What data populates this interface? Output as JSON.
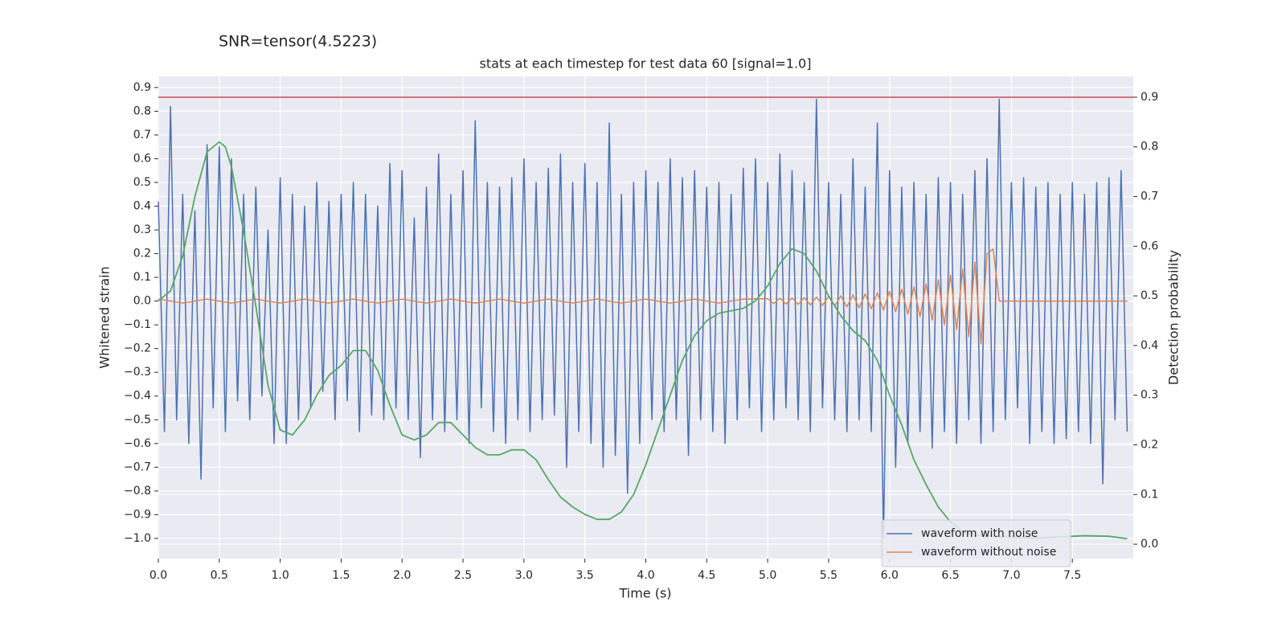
{
  "chart_data": {
    "type": "line",
    "suptitle": "SNR=tensor(4.5223)",
    "title": "stats at each timestep for test data 60 [signal=1.0]",
    "xlabel": "Time (s)",
    "ylabel": "Whitened strain",
    "y2label": "Detection probability",
    "xlim": [
      0,
      8.0
    ],
    "ylim": [
      -1.085,
      0.947
    ],
    "y2lim": [
      -0.029,
      0.942
    ],
    "xticks": [
      {
        "value": 0,
        "label": "0.0"
      },
      0.5,
      {
        "value": 1,
        "label": "1.0"
      },
      1.5,
      {
        "value": 2,
        "label": "2.0"
      },
      2.5,
      {
        "value": 3,
        "label": "3.0"
      },
      3.5,
      {
        "value": 4,
        "label": "4.0"
      },
      4.5,
      {
        "value": 5,
        "label": "5.0"
      },
      5.5,
      {
        "value": 6,
        "label": "6.0"
      },
      6.5,
      {
        "value": 7,
        "label": "7.0"
      },
      7.5
    ],
    "yticks": [
      {
        "value": -1.0,
        "label": "−1.0"
      },
      {
        "value": -0.9,
        "label": "−0.9"
      },
      {
        "value": -0.8,
        "label": "−0.8"
      },
      {
        "value": -0.7,
        "label": "−0.7"
      },
      {
        "value": -0.6,
        "label": "−0.6"
      },
      {
        "value": -0.5,
        "label": "−0.5"
      },
      {
        "value": -0.4,
        "label": "−0.4"
      },
      {
        "value": -0.3,
        "label": "−0.3"
      },
      {
        "value": -0.2,
        "label": "−0.2"
      },
      {
        "value": -0.1,
        "label": "−0.1"
      },
      {
        "value": 0,
        "label": "0.0"
      },
      0.1,
      0.2,
      0.3,
      0.4,
      0.5,
      0.6,
      0.7,
      0.8,
      0.9
    ],
    "y2ticks": [
      {
        "value": 0,
        "label": "0.0"
      },
      0.1,
      0.2,
      0.3,
      0.4,
      0.5,
      0.6,
      0.7,
      0.8,
      0.9
    ],
    "grid": true,
    "legend": "lower right",
    "hline": {
      "value": 0.9,
      "axis": "y2",
      "color": "#c44e52"
    },
    "series": [
      {
        "name": "waveform with noise",
        "color": "#4c72b0",
        "width": 1.5,
        "x": [
          0,
          0.05,
          0.1,
          0.15,
          0.2,
          0.25,
          0.3,
          0.35,
          0.4,
          0.45,
          0.5,
          0.55,
          0.6,
          0.65,
          0.7,
          0.75,
          0.8,
          0.85,
          0.9,
          0.95,
          1,
          1.05,
          1.1,
          1.15,
          1.2,
          1.25,
          1.3,
          1.35,
          1.4,
          1.45,
          1.5,
          1.55,
          1.6,
          1.65,
          1.7,
          1.75,
          1.8,
          1.85,
          1.9,
          1.95,
          2,
          2.05,
          2.1,
          2.15,
          2.2,
          2.25,
          2.3,
          2.35,
          2.4,
          2.45,
          2.5,
          2.55,
          2.6,
          2.65,
          2.7,
          2.75,
          2.8,
          2.85,
          2.9,
          2.95,
          3,
          3.05,
          3.1,
          3.15,
          3.2,
          3.25,
          3.3,
          3.35,
          3.4,
          3.45,
          3.5,
          3.55,
          3.6,
          3.65,
          3.7,
          3.75,
          3.8,
          3.85,
          3.9,
          3.95,
          4,
          4.05,
          4.1,
          4.15,
          4.2,
          4.25,
          4.3,
          4.35,
          4.4,
          4.45,
          4.5,
          4.55,
          4.6,
          4.65,
          4.7,
          4.75,
          4.8,
          4.85,
          4.9,
          4.95,
          5,
          5.05,
          5.1,
          5.15,
          5.2,
          5.25,
          5.3,
          5.35,
          5.4,
          5.45,
          5.5,
          5.55,
          5.6,
          5.65,
          5.7,
          5.75,
          5.8,
          5.85,
          5.9,
          5.95,
          6,
          6.05,
          6.1,
          6.15,
          6.2,
          6.25,
          6.3,
          6.35,
          6.4,
          6.45,
          6.5,
          6.55,
          6.6,
          6.65,
          6.7,
          6.75,
          6.8,
          6.85,
          6.9,
          6.95,
          7,
          7.05,
          7.1,
          7.15,
          7.2,
          7.25,
          7.3,
          7.35,
          7.4,
          7.45,
          7.5,
          7.55,
          7.6,
          7.65,
          7.7,
          7.75,
          7.8,
          7.85,
          7.9,
          7.95
        ],
        "values": [
          0.42,
          -0.55,
          0.82,
          -0.5,
          0.45,
          -0.6,
          0.38,
          -0.75,
          0.66,
          -0.45,
          0.65,
          -0.55,
          0.6,
          -0.42,
          0.45,
          -0.5,
          0.48,
          -0.4,
          0.3,
          -0.6,
          0.52,
          -0.6,
          0.45,
          -0.5,
          0.4,
          -0.45,
          0.5,
          -0.38,
          0.42,
          -0.5,
          0.45,
          -0.42,
          0.5,
          -0.55,
          0.45,
          -0.48,
          0.4,
          -0.5,
          0.58,
          -0.45,
          0.55,
          -0.5,
          0.35,
          -0.66,
          0.48,
          -0.5,
          0.62,
          -0.55,
          0.45,
          -0.5,
          0.55,
          -0.6,
          0.76,
          -0.45,
          0.5,
          -0.55,
          0.48,
          -0.6,
          0.52,
          -0.5,
          0.6,
          -0.55,
          0.5,
          -0.5,
          0.56,
          -0.48,
          0.62,
          -0.7,
          0.5,
          -0.55,
          0.58,
          -0.6,
          0.5,
          -0.7,
          0.75,
          -0.65,
          0.45,
          -0.81,
          0.5,
          -0.6,
          0.55,
          -0.5,
          0.5,
          -0.55,
          0.6,
          -0.5,
          0.52,
          -0.65,
          0.55,
          -0.5,
          0.48,
          -0.55,
          0.5,
          -0.6,
          0.45,
          -0.5,
          0.56,
          -0.45,
          0.6,
          -0.55,
          0.5,
          -0.5,
          0.62,
          -0.45,
          0.55,
          -0.5,
          0.5,
          -0.55,
          0.85,
          -0.45,
          0.5,
          -0.5,
          0.45,
          -0.55,
          0.6,
          -0.5,
          0.48,
          -0.55,
          0.75,
          -1.0,
          0.55,
          -0.7,
          0.48,
          -0.6,
          0.5,
          -0.55,
          0.45,
          -0.62,
          0.52,
          -0.55,
          0.5,
          -0.6,
          0.45,
          -0.5,
          0.55,
          -0.6,
          0.6,
          -0.55,
          0.85,
          -0.5,
          0.5,
          -0.45,
          0.52,
          -0.6,
          0.48,
          -0.55,
          0.5,
          -0.6,
          0.45,
          -0.58,
          0.5,
          -0.55,
          0.45,
          -0.6,
          0.5,
          -0.77,
          0.52,
          -0.5,
          0.55,
          -0.55
        ]
      },
      {
        "name": "waveform without noise",
        "color": "#dd8452",
        "width": 1.5,
        "x": [
          0,
          0.2,
          0.4,
          0.6,
          0.8,
          1,
          1.2,
          1.4,
          1.6,
          1.8,
          2,
          2.2,
          2.4,
          2.6,
          2.8,
          3,
          3.2,
          3.4,
          3.6,
          3.8,
          4,
          4.2,
          4.4,
          4.6,
          4.8,
          5,
          5.05,
          5.1,
          5.15,
          5.2,
          5.25,
          5.3,
          5.35,
          5.4,
          5.45,
          5.5,
          5.55,
          5.6,
          5.65,
          5.7,
          5.75,
          5.8,
          5.85,
          5.9,
          5.95,
          6,
          6.05,
          6.1,
          6.15,
          6.2,
          6.25,
          6.3,
          6.35,
          6.4,
          6.45,
          6.5,
          6.55,
          6.6,
          6.65,
          6.7,
          6.75,
          6.8,
          6.85,
          6.9,
          7.95
        ],
        "values": [
          0.008,
          -0.008,
          0.008,
          -0.008,
          0.008,
          -0.008,
          0.008,
          -0.008,
          0.008,
          -0.008,
          0.008,
          -0.008,
          0.008,
          -0.008,
          0.008,
          -0.008,
          0.008,
          -0.008,
          0.008,
          -0.008,
          0.008,
          -0.008,
          0.008,
          -0.008,
          0.008,
          0.01,
          -0.01,
          0.012,
          -0.012,
          0.013,
          -0.014,
          0.015,
          -0.016,
          0.017,
          -0.018,
          0.02,
          -0.021,
          0.022,
          -0.024,
          0.026,
          -0.028,
          0.03,
          -0.032,
          0.035,
          -0.038,
          0.041,
          -0.045,
          0.05,
          -0.055,
          0.06,
          -0.066,
          0.073,
          -0.08,
          0.09,
          -0.1,
          0.11,
          -0.12,
          0.135,
          -0.15,
          0.165,
          -0.18,
          0.2,
          0.22,
          0,
          0
        ]
      },
      {
        "color": "#55a868",
        "width": 1.8,
        "axis": "y2",
        "x": [
          0,
          0.1,
          0.2,
          0.3,
          0.4,
          0.5,
          0.55,
          0.6,
          0.7,
          0.8,
          0.9,
          1,
          1.1,
          1.2,
          1.3,
          1.4,
          1.5,
          1.6,
          1.7,
          1.8,
          1.9,
          2,
          2.1,
          2.2,
          2.3,
          2.4,
          2.5,
          2.6,
          2.7,
          2.8,
          2.9,
          3,
          3.1,
          3.2,
          3.3,
          3.4,
          3.5,
          3.6,
          3.7,
          3.8,
          3.9,
          4,
          4.1,
          4.2,
          4.3,
          4.4,
          4.5,
          4.6,
          4.7,
          4.8,
          4.9,
          5,
          5.1,
          5.2,
          5.3,
          5.4,
          5.5,
          5.6,
          5.7,
          5.8,
          5.9,
          6,
          6.1,
          6.2,
          6.3,
          6.4,
          6.5,
          6.6,
          6.7,
          6.8,
          6.9,
          7,
          7.1,
          7.2,
          7.4,
          7.6,
          7.8,
          7.95
        ],
        "values": [
          0.49,
          0.51,
          0.58,
          0.7,
          0.79,
          0.81,
          0.8,
          0.76,
          0.63,
          0.48,
          0.32,
          0.23,
          0.22,
          0.25,
          0.3,
          0.34,
          0.36,
          0.39,
          0.39,
          0.35,
          0.28,
          0.22,
          0.21,
          0.22,
          0.245,
          0.245,
          0.22,
          0.195,
          0.18,
          0.18,
          0.19,
          0.19,
          0.17,
          0.13,
          0.095,
          0.075,
          0.06,
          0.05,
          0.05,
          0.065,
          0.1,
          0.16,
          0.23,
          0.3,
          0.37,
          0.42,
          0.45,
          0.465,
          0.47,
          0.475,
          0.49,
          0.52,
          0.565,
          0.595,
          0.585,
          0.55,
          0.5,
          0.46,
          0.43,
          0.41,
          0.37,
          0.3,
          0.24,
          0.17,
          0.12,
          0.075,
          0.045,
          0.025,
          0.018,
          0.017,
          0.015,
          0.014,
          0.013,
          0.012,
          0.015,
          0.017,
          0.016,
          0.011
        ]
      }
    ]
  }
}
